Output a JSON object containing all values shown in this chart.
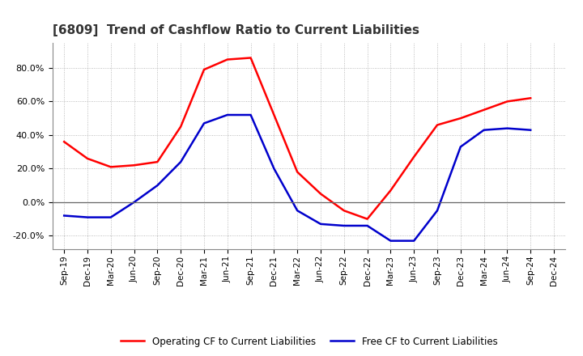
{
  "title": "[6809]  Trend of Cashflow Ratio to Current Liabilities",
  "x_labels": [
    "Sep-19",
    "Dec-19",
    "Mar-20",
    "Jun-20",
    "Sep-20",
    "Dec-20",
    "Mar-21",
    "Jun-21",
    "Sep-21",
    "Dec-21",
    "Mar-22",
    "Jun-22",
    "Sep-22",
    "Dec-22",
    "Mar-23",
    "Jun-23",
    "Sep-23",
    "Dec-23",
    "Mar-24",
    "Jun-24",
    "Sep-24",
    "Dec-24"
  ],
  "operating_cf": [
    0.36,
    0.26,
    0.21,
    0.22,
    0.24,
    0.45,
    0.79,
    0.85,
    0.86,
    0.52,
    0.18,
    0.05,
    -0.05,
    -0.1,
    0.07,
    0.27,
    0.46,
    0.5,
    0.55,
    0.6,
    0.62,
    null
  ],
  "free_cf": [
    -0.08,
    -0.09,
    -0.09,
    0.0,
    0.1,
    0.24,
    0.47,
    0.52,
    0.52,
    0.2,
    -0.05,
    -0.13,
    -0.14,
    -0.14,
    -0.23,
    -0.23,
    -0.05,
    0.33,
    0.43,
    0.44,
    0.43,
    null
  ],
  "ylim": [
    -0.28,
    0.95
  ],
  "yticks": [
    -0.2,
    0.0,
    0.2,
    0.4,
    0.6,
    0.8
  ],
  "operating_color": "#FF0000",
  "free_color": "#0000CC",
  "background_color": "#FFFFFF",
  "plot_bg_color": "#FFFFFF",
  "grid_color": "#AAAAAA",
  "title_fontsize": 11,
  "tick_fontsize": 7.5,
  "legend_labels": [
    "Operating CF to Current Liabilities",
    "Free CF to Current Liabilities"
  ]
}
